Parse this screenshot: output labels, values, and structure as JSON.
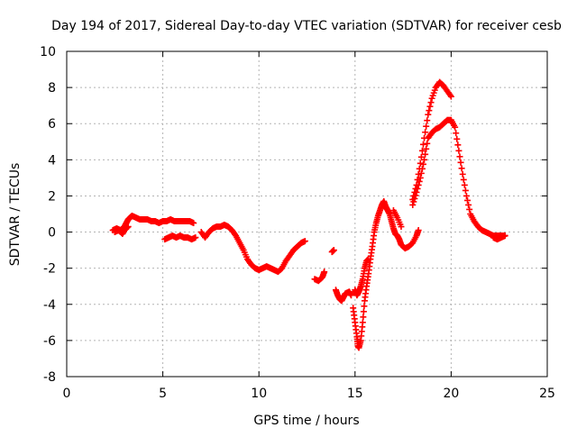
{
  "chart_data": {
    "type": "scatter",
    "title": "Day 194 of 2017, Sidereal Day-to-day VTEC variation (SDTVAR) for receiver cesb",
    "xlabel": "GPS time / hours",
    "ylabel": "SDTVAR / TECUs",
    "xlim": [
      0,
      25
    ],
    "ylim": [
      -8,
      10
    ],
    "xticks": [
      0,
      5,
      10,
      15,
      20,
      25
    ],
    "yticks": [
      -8,
      -6,
      -4,
      -2,
      0,
      2,
      4,
      6,
      8,
      10
    ],
    "grid": true,
    "marker": "+",
    "series": [
      {
        "name": "cesb",
        "color": "#ff0000",
        "segments": [
          {
            "x": [
              2.4,
              2.6,
              2.8,
              3.0,
              3.1,
              3.2,
              3.3,
              3.4,
              3.6,
              3.8,
              4.0,
              4.2,
              4.4,
              4.6,
              4.8,
              5.0,
              5.2,
              5.4,
              5.6,
              5.8,
              6.0,
              6.2,
              6.4,
              6.6
            ],
            "y": [
              0.1,
              0.2,
              0.1,
              0.3,
              0.5,
              0.7,
              0.8,
              0.9,
              0.8,
              0.7,
              0.7,
              0.7,
              0.6,
              0.6,
              0.5,
              0.6,
              0.6,
              0.7,
              0.6,
              0.6,
              0.6,
              0.6,
              0.6,
              0.5
            ]
          },
          {
            "x": [
              2.5,
              2.7,
              2.9,
              3.0,
              3.2
            ],
            "y": [
              0.0,
              0.1,
              -0.1,
              0.1,
              0.3
            ]
          },
          {
            "x": [
              5.1,
              5.3,
              5.5,
              5.7,
              5.9,
              6.1,
              6.3,
              6.5,
              6.7
            ],
            "y": [
              -0.4,
              -0.3,
              -0.2,
              -0.3,
              -0.2,
              -0.3,
              -0.3,
              -0.4,
              -0.3
            ]
          },
          {
            "x": [
              7.0,
              7.2,
              7.4,
              7.6,
              7.8,
              8.0,
              8.2,
              8.4,
              8.6,
              8.8,
              9.0,
              9.2,
              9.4,
              9.6,
              9.8,
              10.0,
              10.2,
              10.4,
              10.6,
              10.8,
              11.0,
              11.2,
              11.4,
              11.6,
              11.8,
              12.0,
              12.2,
              12.4
            ],
            "y": [
              0.0,
              -0.3,
              0.0,
              0.2,
              0.3,
              0.3,
              0.4,
              0.3,
              0.1,
              -0.2,
              -0.6,
              -1.0,
              -1.5,
              -1.8,
              -2.0,
              -2.1,
              -2.0,
              -1.9,
              -2.0,
              -2.1,
              -2.2,
              -2.0,
              -1.6,
              -1.3,
              -1.0,
              -0.8,
              -0.6,
              -0.5
            ]
          },
          {
            "x": [
              12.9,
              13.1,
              13.3,
              13.4
            ],
            "y": [
              -2.6,
              -2.7,
              -2.5,
              -2.2
            ]
          },
          {
            "x": [
              13.8,
              13.9
            ],
            "y": [
              -1.1,
              -1.0
            ]
          },
          {
            "x": [
              14.0,
              14.1,
              14.2,
              14.3,
              14.4,
              14.5,
              14.7,
              14.8
            ],
            "y": [
              -3.2,
              -3.5,
              -3.7,
              -3.8,
              -3.6,
              -3.4,
              -3.3,
              -3.5
            ]
          },
          {
            "x": [
              14.9,
              15.0,
              15.1,
              15.15,
              15.2,
              15.3,
              15.4,
              15.5,
              15.6,
              15.7,
              15.8,
              15.9,
              16.0,
              16.1,
              16.2,
              16.3,
              16.4,
              16.5,
              16.6,
              16.7,
              16.8,
              16.9,
              17.0,
              17.1,
              17.2,
              17.3,
              17.4,
              17.6,
              17.8,
              18.0,
              18.2,
              18.3
            ],
            "y": [
              -4.2,
              -5.0,
              -5.8,
              -6.3,
              -6.4,
              -6.0,
              -5.0,
              -3.8,
              -3.0,
              -2.3,
              -1.5,
              -0.8,
              0.0,
              0.5,
              0.9,
              1.2,
              1.5,
              1.7,
              1.4,
              1.2,
              1.0,
              0.6,
              0.2,
              -0.1,
              -0.2,
              -0.4,
              -0.7,
              -0.9,
              -0.8,
              -0.6,
              -0.2,
              0.1
            ]
          },
          {
            "x": [
              15.0,
              15.1,
              15.2,
              15.3,
              15.4,
              15.5,
              15.6,
              15.7
            ],
            "y": [
              -3.2,
              -3.5,
              -3.3,
              -3.0,
              -2.6,
              -2.0,
              -1.6,
              -1.5
            ]
          },
          {
            "x": [
              17.0,
              17.2,
              17.4
            ],
            "y": [
              1.2,
              0.8,
              0.3
            ]
          },
          {
            "x": [
              18.0,
              18.2,
              18.4,
              18.6,
              18.8,
              19.0,
              19.2,
              19.4,
              19.6,
              19.8,
              20.0,
              20.2,
              20.4,
              20.6,
              20.8,
              21.0,
              21.2,
              21.4,
              21.6,
              21.8,
              22.0,
              22.2,
              22.4,
              22.6,
              22.8
            ],
            "y": [
              1.5,
              2.2,
              3.0,
              4.0,
              5.2,
              5.5,
              5.7,
              5.8,
              6.0,
              6.2,
              6.2,
              5.8,
              4.5,
              3.2,
              2.0,
              1.0,
              0.6,
              0.3,
              0.1,
              0.0,
              -0.1,
              -0.2,
              -0.2,
              -0.2,
              -0.2
            ]
          },
          {
            "x": [
              18.0,
              18.2,
              18.4,
              18.6,
              18.8,
              19.0,
              19.2,
              19.4,
              19.6,
              19.8,
              20.0
            ],
            "y": [
              1.8,
              2.6,
              3.8,
              5.2,
              6.5,
              7.4,
              8.0,
              8.3,
              8.1,
              7.8,
              7.5
            ]
          },
          {
            "x": [
              22.2,
              22.4,
              22.6,
              22.8
            ],
            "y": [
              -0.3,
              -0.4,
              -0.3,
              -0.2
            ]
          }
        ]
      }
    ]
  }
}
